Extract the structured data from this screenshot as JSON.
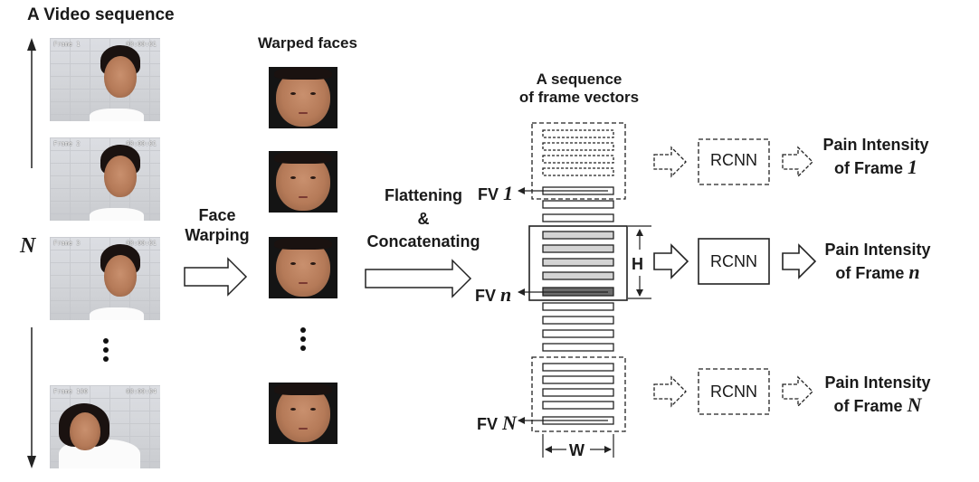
{
  "titles": {
    "video_sequence": "A Video sequence",
    "warped_faces": "Warped faces",
    "frame_vectors_line1": "A sequence",
    "frame_vectors_line2": "of frame vectors"
  },
  "labels": {
    "N_axis": "N",
    "face_warping_line1": "Face",
    "face_warping_line2": "Warping",
    "flatten_line1": "Flattening",
    "flatten_line2": "&",
    "flatten_line3": "Concatenating",
    "fv_prefix": "FV",
    "fv1_index": "1",
    "fvn_index": "n",
    "fvN_index": "N",
    "H": "H",
    "W": "W",
    "rcnn": "RCNN",
    "pain_line1": "Pain Intensity",
    "pain_line2_prefix": "of Frame",
    "pain_top_index": "1",
    "pain_mid_index": "n",
    "pain_bottom_index": "N"
  },
  "frames": [
    {
      "label": "Frame 1",
      "time": "00:00:01"
    },
    {
      "label": "Frame 2",
      "time": "00:00:01"
    },
    {
      "label": "Frame 3",
      "time": "00:00:01"
    },
    {
      "label": "Frame 100",
      "time": "00:00:04"
    }
  ],
  "colors": {
    "highlight_bar": "#d4d4d4",
    "selected_bar": "#6b6b6b",
    "outline": "#222222"
  }
}
